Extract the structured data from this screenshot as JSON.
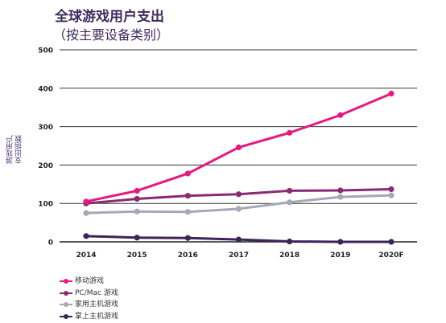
{
  "chart_data": {
    "type": "line",
    "title": "全球游戏用户支出",
    "subtitle": "（按主要设备类别）",
    "ylabel_lines": [
      "游戏用户",
      "支出指数"
    ],
    "xlabel": "",
    "categories": [
      "2014",
      "2015",
      "2016",
      "2017",
      "2018",
      "2019",
      "2020F"
    ],
    "yticks": [
      0,
      100,
      200,
      300,
      400,
      500
    ],
    "ylim": [
      0,
      500
    ],
    "grid": "horizontal",
    "legend_position": "bottom-left",
    "series": [
      {
        "name": "移动游戏",
        "color": "#e6197f",
        "values": [
          105,
          133,
          178,
          246,
          284,
          330,
          386
        ]
      },
      {
        "name": "PC/Mac 游戏",
        "color": "#8a2a73",
        "values": [
          100,
          112,
          120,
          124,
          133,
          134,
          137
        ]
      },
      {
        "name": "家用主机游戏",
        "color": "#a7a8b5",
        "values": [
          75,
          79,
          78,
          86,
          103,
          117,
          121
        ]
      },
      {
        "name": "掌上主机游戏",
        "color": "#3b2557",
        "values": [
          15,
          11,
          10,
          6,
          1,
          0,
          0
        ]
      }
    ]
  }
}
